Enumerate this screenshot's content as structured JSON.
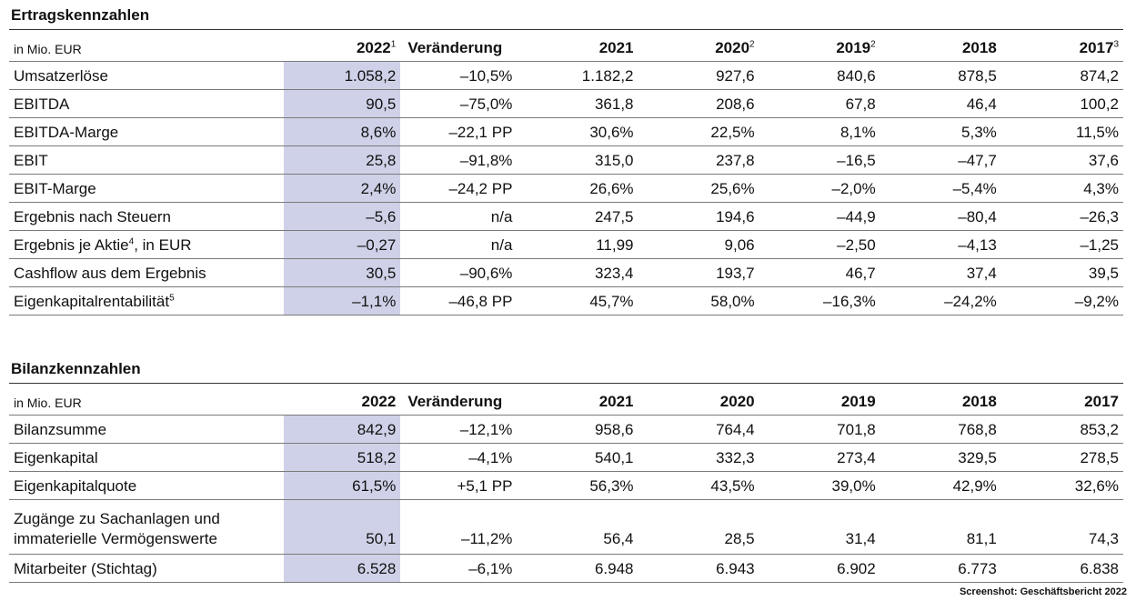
{
  "ertrag": {
    "title": "Ertragskennzahlen",
    "unit": "in Mio. EUR",
    "headers": [
      {
        "year": "2022",
        "sup": "1"
      },
      {
        "year": "Veränderung",
        "sup": ""
      },
      {
        "year": "2021",
        "sup": ""
      },
      {
        "year": "2020",
        "sup": "2"
      },
      {
        "year": "2019",
        "sup": "2"
      },
      {
        "year": "2018",
        "sup": ""
      },
      {
        "year": "2017",
        "sup": "3"
      }
    ],
    "rows": [
      {
        "label": "Umsatzerlöse",
        "sup": "",
        "suffix": "",
        "v": [
          "1.058,2",
          "–10,5%",
          "1.182,2",
          "927,6",
          "840,6",
          "878,5",
          "874,2"
        ]
      },
      {
        "label": "EBITDA",
        "sup": "",
        "suffix": "",
        "v": [
          "90,5",
          "–75,0%",
          "361,8",
          "208,6",
          "67,8",
          "46,4",
          "100,2"
        ]
      },
      {
        "label": "EBITDA-Marge",
        "sup": "",
        "suffix": "",
        "v": [
          "8,6%",
          "–22,1 PP",
          "30,6%",
          "22,5%",
          "8,1%",
          "5,3%",
          "11,5%"
        ]
      },
      {
        "label": "EBIT",
        "sup": "",
        "suffix": "",
        "v": [
          "25,8",
          "–91,8%",
          "315,0",
          "237,8",
          "–16,5",
          "–47,7",
          "37,6"
        ]
      },
      {
        "label": "EBIT-Marge",
        "sup": "",
        "suffix": "",
        "v": [
          "2,4%",
          "–24,2 PP",
          "26,6%",
          "25,6%",
          "–2,0%",
          "–5,4%",
          "4,3%"
        ]
      },
      {
        "label": "Ergebnis nach Steuern",
        "sup": "",
        "suffix": "",
        "v": [
          "–5,6",
          "n/a",
          "247,5",
          "194,6",
          "–44,9",
          "–80,4",
          "–26,3"
        ]
      },
      {
        "label": "Ergebnis je Aktie",
        "sup": "4",
        "suffix": ", in EUR",
        "v": [
          "–0,27",
          "n/a",
          "11,99",
          "9,06",
          "–2,50",
          "–4,13",
          "–1,25"
        ]
      },
      {
        "label": "Cashflow aus dem Ergebnis",
        "sup": "",
        "suffix": "",
        "v": [
          "30,5",
          "–90,6%",
          "323,4",
          "193,7",
          "46,7",
          "37,4",
          "39,5"
        ]
      },
      {
        "label": "Eigenkapitalrentabilität",
        "sup": "5",
        "suffix": "",
        "v": [
          "–1,1%",
          "–46,8 PP",
          "45,7%",
          "58,0%",
          "–16,3%",
          "–24,2%",
          "–9,2%"
        ]
      }
    ]
  },
  "bilanz": {
    "title": "Bilanzkennzahlen",
    "unit": "in Mio. EUR",
    "headers": [
      {
        "year": "2022",
        "sup": ""
      },
      {
        "year": "Veränderung",
        "sup": ""
      },
      {
        "year": "2021",
        "sup": ""
      },
      {
        "year": "2020",
        "sup": ""
      },
      {
        "year": "2019",
        "sup": ""
      },
      {
        "year": "2018",
        "sup": ""
      },
      {
        "year": "2017",
        "sup": ""
      }
    ],
    "rows": [
      {
        "label": "Bilanzsumme",
        "sup": "",
        "suffix": "",
        "v": [
          "842,9",
          "–12,1%",
          "958,6",
          "764,4",
          "701,8",
          "768,8",
          "853,2"
        ]
      },
      {
        "label": "Eigenkapital",
        "sup": "",
        "suffix": "",
        "v": [
          "518,2",
          "–4,1%",
          "540,1",
          "332,3",
          "273,4",
          "329,5",
          "278,5"
        ]
      },
      {
        "label": "Eigenkapitalquote",
        "sup": "",
        "suffix": "",
        "v": [
          "61,5%",
          "+5,1 PP",
          "56,3%",
          "43,5%",
          "39,0%",
          "42,9%",
          "32,6%"
        ]
      },
      {
        "label": "Zugänge zu Sachanlagen und immaterielle Vermögenswerte",
        "sup": "",
        "suffix": "",
        "tall": true,
        "v": [
          "50,1",
          "–11,2%",
          "56,4",
          "28,5",
          "31,4",
          "81,1",
          "74,3"
        ]
      },
      {
        "label": "Mitarbeiter (Stichtag)",
        "sup": "",
        "suffix": "",
        "v": [
          "6.528",
          "–6,1%",
          "6.948",
          "6.943",
          "6.902",
          "6.773",
          "6.838"
        ]
      }
    ]
  },
  "credit": "Screenshot: Geschäftsbericht 2022",
  "colors": {
    "highlight": "#cfd1e8"
  }
}
